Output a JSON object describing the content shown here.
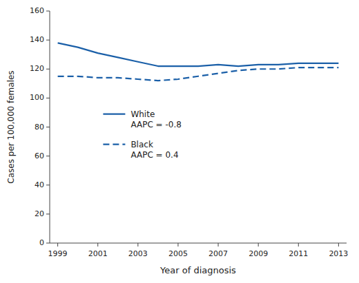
{
  "chart_data": {
    "type": "line",
    "x": [
      1999,
      2000,
      2001,
      2002,
      2003,
      2004,
      2005,
      2006,
      2007,
      2008,
      2009,
      2010,
      2011,
      2012,
      2013
    ],
    "series": [
      {
        "name": "White\nAAPC = -0.8",
        "color": "#1a5fa8",
        "line_style": "solid",
        "values": [
          138,
          135,
          131,
          128,
          125,
          122,
          122,
          122,
          123,
          122,
          123,
          123,
          124,
          124,
          124
        ]
      },
      {
        "name": "Black\nAAPC = 0.4",
        "color": "#1a5fa8",
        "line_style": "dashed",
        "values": [
          115,
          115,
          114,
          114,
          113,
          112,
          113,
          115,
          117,
          119,
          120,
          120,
          121,
          121,
          121
        ]
      }
    ],
    "x_label": "Year of diagnosis",
    "y_label": "Cases per 100,000 females",
    "xlim": [
      1998.6,
      2013.4
    ],
    "xticks": [
      1999,
      2001,
      2003,
      2005,
      2007,
      2009,
      2011,
      2013
    ],
    "ylim": [
      0,
      160
    ],
    "yticks": [
      0,
      20,
      40,
      60,
      80,
      100,
      120,
      140,
      160
    ],
    "grid": false,
    "legend": "left"
  }
}
